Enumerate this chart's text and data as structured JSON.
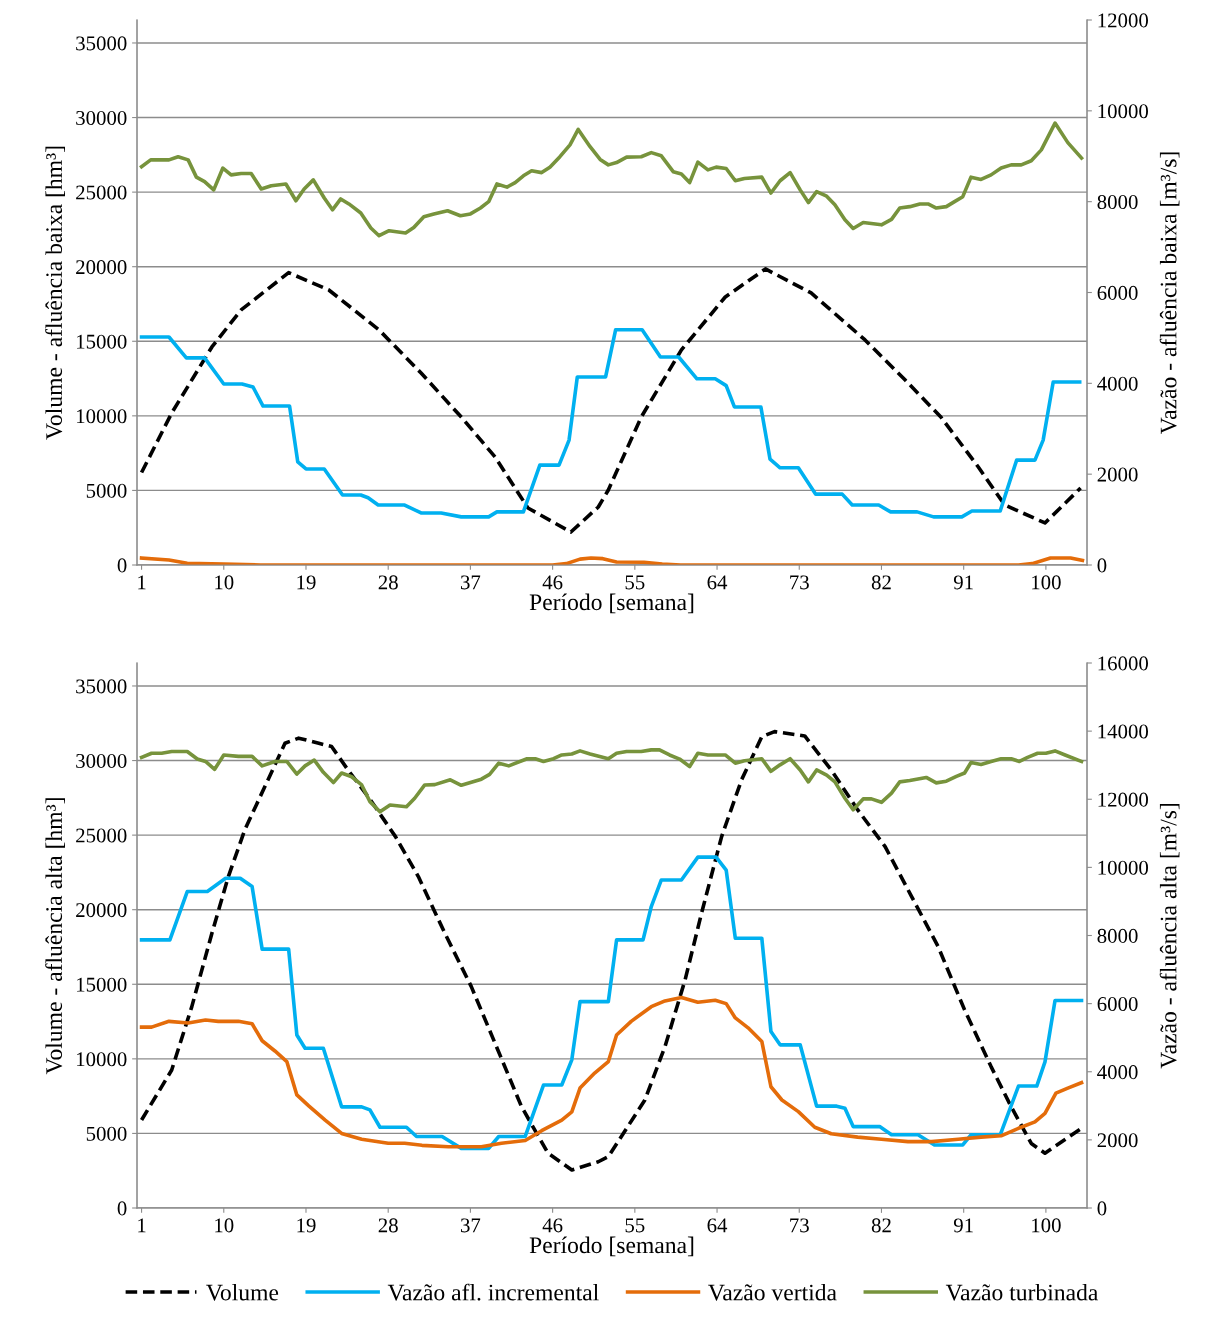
{
  "chart_data": [
    {
      "type": "line",
      "xlabel": "Período [semana]",
      "ylabel": "Volume - afluência baixa [hm³]",
      "y2label": "Vazão - afluência baixa [m³/s]",
      "xlim": [
        0.5,
        104.5
      ],
      "xticks": [
        1,
        10,
        19,
        28,
        37,
        46,
        55,
        64,
        73,
        82,
        91,
        100
      ],
      "ylim": [
        0,
        36540
      ],
      "yticks": [
        0,
        5000,
        10000,
        15000,
        20000,
        25000,
        30000,
        35000
      ],
      "y2lim": [
        0,
        12000
      ],
      "y2ticks": [
        0,
        2000,
        4000,
        6000,
        8000,
        10000,
        12000
      ],
      "grid": "y",
      "legend": false,
      "marker": "none",
      "series": [
        {
          "color": "#000000",
          "line_style": "dashed",
          "axis": "y",
          "x": [
            1,
            4.3,
            8.7,
            11.9,
            17.1,
            21.5,
            27,
            31.6,
            36,
            39.7,
            43.3,
            48,
            51,
            52.1,
            55.7,
            60.1,
            64.9,
            69.3,
            74.3,
            80.2,
            84.6,
            88.5,
            92.6,
            95.5,
            99.9,
            103.8
          ],
          "values": [
            6200,
            10190,
            14620,
            17100,
            19600,
            18440,
            15760,
            12870,
            9920,
            7240,
            3820,
            2210,
            3890,
            5030,
            9920,
            14420,
            17970,
            19850,
            18240,
            15090,
            12400,
            9920,
            6570,
            4020,
            2820,
            5160
          ]
        },
        {
          "color": "#00b0f0",
          "line_style": "solid",
          "axis": "y2",
          "x": [
            1,
            4,
            5.9,
            7.9,
            10,
            12,
            13.2,
            14.3,
            17.2,
            18.1,
            19,
            21,
            23,
            25,
            25.8,
            26.9,
            29.8,
            31.6,
            33.8,
            36,
            39,
            39.9,
            42.8,
            44.6,
            46.7,
            47.8,
            48.7,
            51.8,
            52.9,
            55.8,
            57.8,
            59.8,
            61.8,
            63.8,
            65,
            65.9,
            68.8,
            69.8,
            70.9,
            72.9,
            74.8,
            77.7,
            78.8,
            81.7,
            83,
            85.9,
            87.7,
            90.8,
            91.9,
            95,
            96.8,
            98.8,
            99.7,
            100.8,
            103.7
          ],
          "values": [
            5020,
            5020,
            4560,
            4560,
            3985,
            3985,
            3920,
            3500,
            3500,
            2270,
            2115,
            2115,
            1540,
            1540,
            1480,
            1320,
            1320,
            1145,
            1145,
            1060,
            1060,
            1170,
            1170,
            2200,
            2200,
            2750,
            4140,
            4140,
            5180,
            5180,
            4580,
            4580,
            4100,
            4100,
            3950,
            3480,
            3480,
            2330,
            2140,
            2140,
            1560,
            1560,
            1320,
            1320,
            1170,
            1170,
            1060,
            1060,
            1190,
            1190,
            2310,
            2310,
            2750,
            4030,
            4030
          ]
        },
        {
          "color": "#e46c0a",
          "line_style": "solid",
          "axis": "y2",
          "x": [
            1,
            4,
            6,
            10,
            14,
            20,
            30,
            40,
            46,
            47.5,
            49,
            50.2,
            51.5,
            53,
            56,
            58,
            60,
            70,
            80,
            90,
            97,
            98.5,
            100.5,
            102.7,
            104
          ],
          "values": [
            154,
            110,
            40,
            20,
            0,
            0,
            0,
            0,
            0,
            30,
            130,
            154,
            140,
            66,
            60,
            20,
            0,
            0,
            0,
            0,
            0,
            30,
            154,
            154,
            100
          ]
        },
        {
          "color": "#77933c",
          "line_style": "solid",
          "axis": "y2",
          "x": [
            1,
            2,
            4,
            5,
            6.1,
            7,
            7.9,
            8.9,
            9.9,
            10.8,
            11.9,
            13,
            14.1,
            15.2,
            16.8,
            17.9,
            18.8,
            19.8,
            21,
            21.9,
            22.8,
            23.7,
            25,
            26.1,
            27,
            28.1,
            29.9,
            30.8,
            31.9,
            33,
            34.5,
            35.9,
            37,
            38.1,
            39,
            39.9,
            41,
            41.9,
            42.8,
            43.7,
            44.8,
            45.7,
            46.8,
            47.9,
            48.8,
            50.1,
            51.2,
            52.1,
            53,
            54.1,
            55.7,
            56.8,
            57.9,
            59.2,
            60.1,
            61,
            61.9,
            63,
            63.9,
            65,
            66,
            67,
            68.9,
            69.9,
            70.9,
            72,
            73.1,
            74,
            74.9,
            76,
            76.9,
            78,
            78.9,
            80,
            82,
            83.1,
            84,
            85.1,
            86.2,
            87.1,
            88,
            89.1,
            90,
            90.9,
            91.8,
            92.9,
            94,
            95.1,
            96.2,
            97.3,
            98.4,
            99.5,
            101,
            102.4,
            103.9
          ],
          "values": [
            8770,
            8920,
            8920,
            8990,
            8920,
            8540,
            8440,
            8260,
            8740,
            8590,
            8620,
            8620,
            8280,
            8350,
            8390,
            8020,
            8280,
            8480,
            8080,
            7820,
            8060,
            7950,
            7750,
            7420,
            7250,
            7360,
            7310,
            7430,
            7670,
            7730,
            7800,
            7690,
            7730,
            7860,
            8000,
            8390,
            8320,
            8420,
            8570,
            8680,
            8640,
            8760,
            8990,
            9250,
            9590,
            9210,
            8930,
            8810,
            8860,
            8980,
            8990,
            9080,
            9010,
            8660,
            8610,
            8420,
            8870,
            8700,
            8760,
            8730,
            8460,
            8510,
            8540,
            8190,
            8460,
            8640,
            8260,
            7980,
            8220,
            8120,
            7930,
            7600,
            7410,
            7540,
            7490,
            7610,
            7860,
            7890,
            7950,
            7950,
            7860,
            7890,
            8000,
            8110,
            8540,
            8490,
            8590,
            8740,
            8810,
            8810,
            8900,
            9140,
            9730,
            9300,
            8960
          ]
        }
      ]
    },
    {
      "type": "line",
      "xlabel": "Período [semana]",
      "ylabel": "Volume - afluência alta [hm³]",
      "y2label": "Vazão - afluência alta [m³/s]",
      "xlim": [
        0.5,
        104.5
      ],
      "xticks": [
        1,
        10,
        19,
        28,
        37,
        46,
        55,
        64,
        73,
        82,
        91,
        100
      ],
      "ylim": [
        0,
        36540
      ],
      "yticks": [
        0,
        5000,
        10000,
        15000,
        20000,
        25000,
        30000,
        35000
      ],
      "y2lim": [
        0,
        16000
      ],
      "y2ticks": [
        0,
        2000,
        4000,
        6000,
        8000,
        10000,
        12000,
        14000,
        16000
      ],
      "grid": "y",
      "legend": "bottom",
      "marker": "none",
      "series": [
        {
          "name": "Volume",
          "color": "#000000",
          "line_style": "dashed",
          "axis": "y",
          "x": [
            1,
            4.3,
            6.5,
            8.7,
            10.5,
            12.3,
            14.5,
            16.7,
            18.2,
            20.4,
            21.8,
            23.6,
            25.8,
            28.8,
            31.3,
            34.2,
            37.1,
            39.7,
            42.6,
            45.5,
            48.1,
            51,
            52.1,
            56.1,
            58.3,
            60.5,
            62.3,
            64.5,
            66.7,
            68.9,
            70.3,
            73.6,
            76.5,
            79.4,
            82.4,
            85.3,
            88.2,
            91.1,
            94,
            96.2,
            98.4,
            99.9,
            103.9
          ],
          "values": [
            5900,
            9250,
            13500,
            18420,
            22220,
            25350,
            28260,
            31160,
            31500,
            31160,
            30940,
            29370,
            27580,
            24900,
            22220,
            18420,
            14840,
            11040,
            6790,
            3670,
            2550,
            3100,
            3440,
            7240,
            10820,
            15290,
            19760,
            24900,
            28730,
            31600,
            31940,
            31650,
            29370,
            26690,
            24230,
            20880,
            17530,
            13280,
            9480,
            6790,
            4330,
            3670,
            5340
          ]
        },
        {
          "name": "Vazão afl. incremental",
          "color": "#00b0f0",
          "line_style": "solid",
          "axis": "y2",
          "x": [
            1,
            4.1,
            6,
            8.2,
            10.2,
            11.8,
            13.1,
            14.2,
            17.1,
            18,
            18.9,
            20.9,
            22.9,
            25.1,
            26,
            27.1,
            30,
            31.1,
            33.9,
            36,
            39,
            40.1,
            43,
            45,
            47,
            48.1,
            49,
            52.1,
            53,
            55.9,
            56.8,
            57.9,
            60.1,
            61.9,
            63.9,
            65,
            66,
            68.9,
            69.9,
            70.9,
            73.1,
            74.9,
            77.1,
            78,
            78.9,
            81.8,
            83.1,
            86,
            87.8,
            90.9,
            91.8,
            95,
            97,
            99,
            99.9,
            101,
            103.9
          ],
          "values": [
            7870,
            7870,
            9290,
            9290,
            9680,
            9680,
            9440,
            7600,
            7600,
            5080,
            4690,
            4690,
            2970,
            2970,
            2880,
            2370,
            2370,
            2100,
            2100,
            1750,
            1750,
            2100,
            2100,
            3610,
            3610,
            4350,
            6060,
            6060,
            7870,
            7870,
            8850,
            9630,
            9630,
            10300,
            10300,
            9920,
            7920,
            7920,
            5180,
            4790,
            4790,
            2990,
            2990,
            2930,
            2390,
            2390,
            2150,
            2150,
            1850,
            1850,
            2150,
            2150,
            3580,
            3580,
            4290,
            6090,
            6090
          ]
        },
        {
          "name": "Vazão vertida",
          "color": "#e46c0a",
          "line_style": "solid",
          "axis": "y2",
          "x": [
            1,
            2.1,
            4,
            6.1,
            8,
            9.4,
            11.6,
            13.1,
            14.2,
            15.6,
            16.9,
            18,
            19.3,
            21.1,
            22.9,
            25.1,
            28,
            29.8,
            31.7,
            34.6,
            38.2,
            40.4,
            43,
            44.8,
            47,
            48.1,
            49,
            50.6,
            52.1,
            53,
            54.6,
            56.8,
            58.3,
            60.1,
            61.9,
            63.8,
            65,
            66,
            67.4,
            68.9,
            69.9,
            71.1,
            72.9,
            74.7,
            76.5,
            79.4,
            82,
            84.9,
            87.5,
            90.4,
            92.9,
            95.1,
            97,
            98.8,
            99.9,
            101.1,
            102.4,
            103.9
          ],
          "values": [
            5310,
            5310,
            5480,
            5430,
            5520,
            5480,
            5480,
            5410,
            4910,
            4610,
            4300,
            3320,
            3000,
            2580,
            2190,
            2020,
            1900,
            1900,
            1840,
            1800,
            1800,
            1900,
            1980,
            2270,
            2580,
            2820,
            3520,
            3960,
            4300,
            5080,
            5480,
            5910,
            6080,
            6180,
            6040,
            6100,
            6000,
            5580,
            5290,
            4890,
            3560,
            3170,
            2830,
            2370,
            2180,
            2080,
            2020,
            1950,
            1950,
            2020,
            2080,
            2120,
            2340,
            2530,
            2780,
            3370,
            3520,
            3680
          ]
        },
        {
          "name": "Vazão turbinada",
          "color": "#77933c",
          "line_style": "solid",
          "axis": "y2",
          "x": [
            1,
            2.1,
            3.2,
            4.3,
            6,
            7.1,
            8,
            9,
            10,
            11.6,
            13.1,
            14.2,
            15.6,
            16.9,
            18,
            18.9,
            19.9,
            20.9,
            22,
            22.9,
            24,
            25.1,
            26,
            27.1,
            28.2,
            30,
            30.9,
            32,
            33.1,
            34.8,
            36,
            38.2,
            39.1,
            40.1,
            41.2,
            43.2,
            44.1,
            45,
            46.1,
            47,
            48.1,
            49,
            50.1,
            52.1,
            53,
            54.1,
            55.7,
            56.8,
            57.7,
            58.8,
            59.9,
            61,
            61.9,
            63,
            64.9,
            66,
            67,
            68.9,
            69.9,
            70.9,
            72,
            73.1,
            74,
            74.9,
            76,
            76.9,
            78,
            78.9,
            80,
            80.9,
            82,
            83.1,
            84,
            85.1,
            86.9,
            88,
            89.1,
            90.2,
            91.1,
            91.8,
            92.9,
            94,
            95.1,
            96.2,
            97.1,
            98,
            99.1,
            100,
            101,
            102.1,
            103.9
          ],
          "values": [
            13230,
            13350,
            13350,
            13400,
            13400,
            13180,
            13110,
            12880,
            13300,
            13260,
            13260,
            12980,
            13110,
            13110,
            12740,
            12980,
            13150,
            12790,
            12490,
            12770,
            12660,
            12420,
            11930,
            11630,
            11830,
            11780,
            12030,
            12420,
            12430,
            12570,
            12410,
            12590,
            12730,
            13060,
            12980,
            13190,
            13190,
            13110,
            13190,
            13300,
            13330,
            13420,
            13330,
            13190,
            13350,
            13400,
            13400,
            13450,
            13450,
            13300,
            13180,
            12960,
            13350,
            13300,
            13300,
            13060,
            13130,
            13190,
            12820,
            13010,
            13190,
            12860,
            12510,
            12860,
            12710,
            12510,
            12030,
            11690,
            12010,
            12010,
            11910,
            12180,
            12510,
            12550,
            12640,
            12480,
            12530,
            12670,
            12770,
            13080,
            13020,
            13110,
            13190,
            13190,
            13110,
            13230,
            13350,
            13350,
            13420,
            13300,
            13110
          ]
        }
      ]
    }
  ]
}
